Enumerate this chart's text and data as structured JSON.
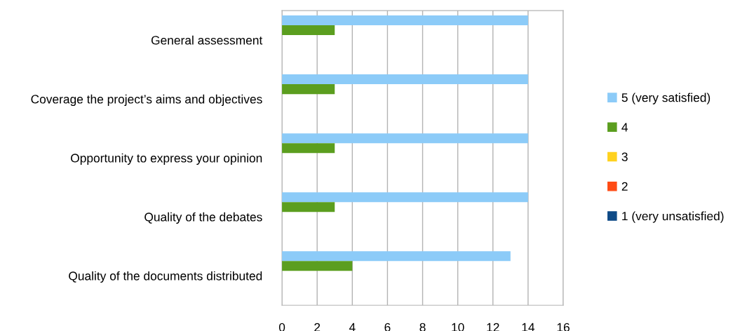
{
  "chart_data": {
    "type": "bar",
    "orientation": "horizontal",
    "categories": [
      "General assessment",
      "Coverage the project’s aims and objectives",
      "Opportunity to express your opinion",
      "Quality of the debates",
      "Quality of the documents distributed"
    ],
    "series": [
      {
        "name": "5 (very satisfied)",
        "color": "#8ccbf8",
        "values": [
          14,
          14,
          14,
          14,
          13
        ]
      },
      {
        "name": "4",
        "color": "#5b9e1f",
        "values": [
          3,
          3,
          3,
          3,
          4
        ]
      },
      {
        "name": "3",
        "color": "#ffd21f",
        "values": [
          0,
          0,
          0,
          0,
          0
        ]
      },
      {
        "name": "2",
        "color": "#ff4b14",
        "values": [
          0,
          0,
          0,
          0,
          0
        ]
      },
      {
        "name": "1 (very unsatisfied)",
        "color": "#0e4a86",
        "values": [
          0,
          0,
          0,
          0,
          0
        ]
      }
    ],
    "xlim": [
      0,
      16
    ],
    "xticks": [
      0,
      2,
      4,
      6,
      8,
      10,
      12,
      14,
      16
    ],
    "grid": "x",
    "legend": "right"
  }
}
